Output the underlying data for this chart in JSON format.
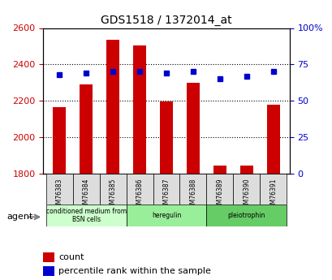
{
  "title": "GDS1518 / 1372014_at",
  "samples": [
    "GSM76383",
    "GSM76384",
    "GSM76385",
    "GSM76386",
    "GSM76387",
    "GSM76388",
    "GSM76389",
    "GSM76390",
    "GSM76391"
  ],
  "counts": [
    2163,
    2290,
    2537,
    2505,
    2197,
    2300,
    1845,
    1843,
    2180
  ],
  "percentiles": [
    68,
    69,
    70,
    70,
    69,
    70,
    65,
    67,
    70
  ],
  "ymin": 1800,
  "ymax": 2600,
  "y2min": 0,
  "y2max": 100,
  "y2ticks": [
    0,
    25,
    50,
    75,
    100
  ],
  "y2ticklabels": [
    "0",
    "25",
    "50",
    "75",
    "100%"
  ],
  "yticks": [
    1800,
    2000,
    2200,
    2400,
    2600
  ],
  "bar_color": "#cc0000",
  "dot_color": "#0000cc",
  "grid_color": "#000000",
  "bg_color": "#ffffff",
  "plot_bg": "#ffffff",
  "agent_label": "agent",
  "groups": [
    {
      "label": "conditioned medium from\nBSN cells",
      "start": 0,
      "end": 3,
      "color": "#ccffcc"
    },
    {
      "label": "heregulin",
      "start": 3,
      "end": 6,
      "color": "#99ee99"
    },
    {
      "label": "pleiotrophin",
      "start": 6,
      "end": 9,
      "color": "#66cc66"
    }
  ],
  "legend_count_label": "count",
  "legend_pct_label": "percentile rank within the sample",
  "left_label_color": "#cc0000",
  "right_label_color": "#0000cc"
}
